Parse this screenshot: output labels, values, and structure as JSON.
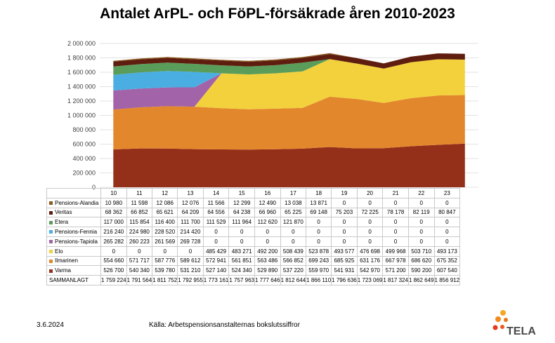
{
  "chart_data": {
    "type": "area",
    "title": "Antalet ArPL- och FöPL-försäkrade åren 2010-2023",
    "categories": [
      "10",
      "11",
      "12",
      "13",
      "14",
      "15",
      "16",
      "17",
      "18",
      "19",
      "20",
      "21",
      "22",
      "23"
    ],
    "ylim": [
      0,
      2000000
    ],
    "yticks": [
      "0",
      "200 000",
      "400 000",
      "600 000",
      "800 000",
      "1 000 000",
      "1 200 000",
      "1 400 000",
      "1 600 000",
      "1 800 000",
      "2 000 000"
    ],
    "grid": true,
    "legend": "table-left",
    "series": [
      {
        "name": "Varma",
        "color": "#94301a",
        "values": [
          526700,
          540340,
          539780,
          531210,
          527140,
          524340,
          529890,
          537220,
          559970,
          541931,
          542970,
          571200,
          590200,
          607540
        ],
        "labels": [
          "526 700",
          "540 340",
          "539 780",
          "531 210",
          "527 140",
          "524 340",
          "529 890",
          "537 220",
          "559 970",
          "541 931",
          "542 970",
          "571 200",
          "590 200",
          "607 540"
        ]
      },
      {
        "name": "Ilmarinen",
        "color": "#e3872d",
        "values": [
          554660,
          571717,
          587776,
          589612,
          572941,
          561851,
          563486,
          566852,
          699243,
          685925,
          631176,
          667978,
          686620,
          675352
        ],
        "labels": [
          "554 660",
          "571 717",
          "587 776",
          "589 612",
          "572 941",
          "561 851",
          "563 486",
          "566 852",
          "699 243",
          "685 925",
          "631 176",
          "667 978",
          "686 620",
          "675 352"
        ]
      },
      {
        "name": "Elo",
        "color": "#f2d13c",
        "values": [
          0,
          0,
          0,
          0,
          485429,
          483271,
          492200,
          508439,
          523878,
          493577,
          476698,
          499968,
          503710,
          493173
        ],
        "labels": [
          "0",
          "0",
          "0",
          "0",
          "485 429",
          "483 271",
          "492 200",
          "508 439",
          "523 878",
          "493 577",
          "476 698",
          "499 968",
          "503 710",
          "493 173"
        ]
      },
      {
        "name": "Pensions-Tapiola",
        "color": "#a363a8",
        "values": [
          265282,
          260223,
          261569,
          269728,
          0,
          0,
          0,
          0,
          0,
          0,
          0,
          0,
          0,
          0
        ],
        "labels": [
          "265 282",
          "260 223",
          "261 569",
          "269 728",
          "0",
          "0",
          "0",
          "0",
          "0",
          "0",
          "0",
          "0",
          "0",
          "0"
        ]
      },
      {
        "name": "Pensions-Fennia",
        "color": "#4aaee2",
        "values": [
          216240,
          224980,
          228520,
          214420,
          0,
          0,
          0,
          0,
          0,
          0,
          0,
          0,
          0,
          0
        ],
        "labels": [
          "216 240",
          "224 980",
          "228 520",
          "214 420",
          "0",
          "0",
          "0",
          "0",
          "0",
          "0",
          "0",
          "0",
          "0",
          "0"
        ]
      },
      {
        "name": "Etera",
        "color": "#5a9c5a",
        "values": [
          117000,
          115854,
          116400,
          111700,
          111529,
          111964,
          112620,
          121870,
          0,
          0,
          0,
          0,
          0,
          0
        ],
        "labels": [
          "117 000",
          "115 854",
          "116 400",
          "111 700",
          "111 529",
          "111 964",
          "112 620",
          "121 870",
          "0",
          "0",
          "0",
          "0",
          "0",
          "0"
        ]
      },
      {
        "name": "Veritas",
        "color": "#5e1d0f",
        "values": [
          68362,
          66852,
          65621,
          64209,
          64556,
          64238,
          66960,
          65225,
          69148,
          75203,
          72225,
          78178,
          82119,
          80847
        ],
        "labels": [
          "68 362",
          "66 852",
          "65 621",
          "64 209",
          "64 556",
          "64 238",
          "66 960",
          "65 225",
          "69 148",
          "75 203",
          "72 225",
          "78 178",
          "82 119",
          "80 847"
        ]
      },
      {
        "name": "Pensions-Alandia",
        "color": "#8a5a1e",
        "values": [
          10980,
          11598,
          12086,
          12076,
          11566,
          12299,
          12490,
          13038,
          13871,
          0,
          0,
          0,
          0,
          0
        ],
        "labels": [
          "10 980",
          "11 598",
          "12 086",
          "12 076",
          "11 566",
          "12 299",
          "12 490",
          "13 038",
          "13 871",
          "0",
          "0",
          "0",
          "0",
          "0"
        ]
      }
    ],
    "total": {
      "name": "SAMMANLAGT",
      "values": [
        "1 759 224",
        "1 791 564",
        "1 811 752",
        "1 792 955",
        "1 773 161",
        "1 757 963",
        "1 777 646",
        "1 812 644",
        "1 866 110",
        "1 796 636",
        "1 723 069",
        "1 817 324",
        "1 862 649",
        "1 856 912"
      ]
    }
  },
  "footer": {
    "date": "3.6.2024",
    "source": "Källa: Arbetspensionsanstalternas bokslutssiffror",
    "logo_text": "TELA"
  }
}
